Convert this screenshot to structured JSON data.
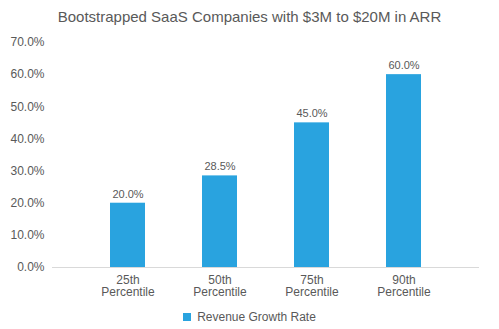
{
  "chart_data": {
    "type": "bar",
    "title": "Bootstrapped SaaS Companies with $3M to $20M in ARR",
    "categories": [
      "25th Percentile",
      "50th Percentile",
      "75th Percentile",
      "90th Percentile"
    ],
    "series": [
      {
        "name": "Revenue Growth Rate",
        "color": "#29a3df",
        "values": [
          20,
          28.5,
          45,
          60
        ],
        "value_labels": [
          "20.0%",
          "28.5%",
          "45.0%",
          "60.0%"
        ]
      }
    ],
    "ylim": [
      0,
      70
    ],
    "yticks": [
      {
        "value": 0,
        "label": "0.0%"
      },
      {
        "value": 10,
        "label": "10.0%"
      },
      {
        "value": 20,
        "label": "20.0%"
      },
      {
        "value": 30,
        "label": "30.0%"
      },
      {
        "value": 40,
        "label": "40.0%"
      },
      {
        "value": 50,
        "label": "50.0%"
      },
      {
        "value": 60,
        "label": "60.0%"
      },
      {
        "value": 70,
        "label": "70.0%"
      }
    ],
    "grid": false,
    "data_labels": true,
    "legend": "bottom"
  }
}
